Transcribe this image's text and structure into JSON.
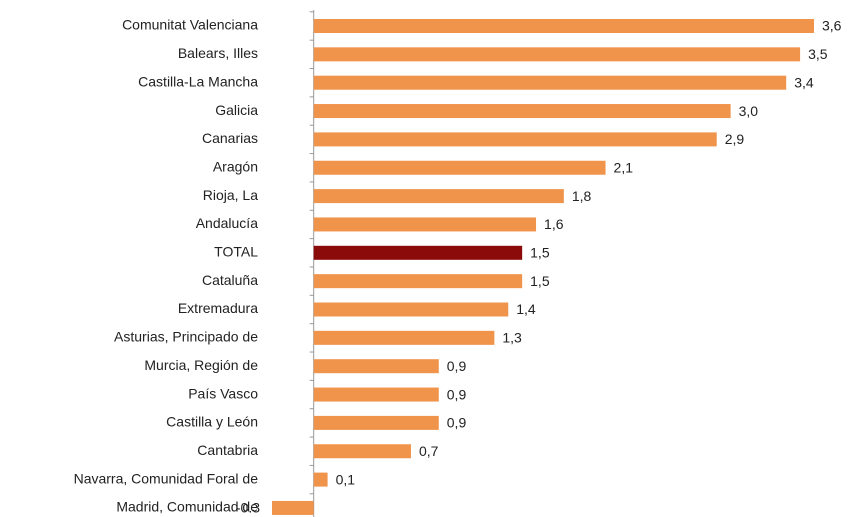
{
  "chart_data": {
    "type": "barh",
    "categories": [
      "Comunitat Valenciana",
      "Balears, Illes",
      "Castilla-La Mancha",
      "Galicia",
      "Canarias",
      "Aragón",
      "Rioja, La",
      "Andalucía",
      "TOTAL",
      "Cataluña",
      "Extremadura",
      "Asturias, Principado de",
      "Murcia, Región de",
      "País Vasco",
      "Castilla y León",
      "Cantabria",
      "Navarra, Comunidad Foral de",
      "Madrid, Comunidad de"
    ],
    "values": [
      3.6,
      3.5,
      3.4,
      3.0,
      2.9,
      2.1,
      1.8,
      1.6,
      1.5,
      1.5,
      1.4,
      1.3,
      0.9,
      0.9,
      0.9,
      0.7,
      0.1,
      -0.3
    ],
    "value_labels": [
      "3,6",
      "3,5",
      "3,4",
      "3,0",
      "2,9",
      "2,1",
      "1,8",
      "1,6",
      "1,5",
      "1,5",
      "1,4",
      "1,3",
      "0,9",
      "0,9",
      "0,9",
      "0,7",
      "0,1",
      "-0.3"
    ],
    "colors": [
      "#f0934b",
      "#f0934b",
      "#f0934b",
      "#f0934b",
      "#f0934b",
      "#f0934b",
      "#f0934b",
      "#f0934b",
      "#8b0a0a",
      "#f0934b",
      "#f0934b",
      "#f0934b",
      "#f0934b",
      "#f0934b",
      "#f0934b",
      "#f0934b",
      "#f0934b",
      "#f0934b"
    ]
  }
}
